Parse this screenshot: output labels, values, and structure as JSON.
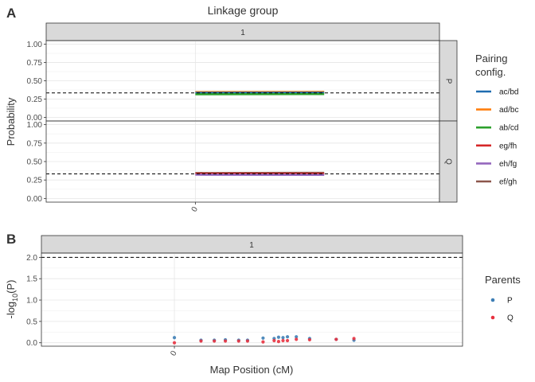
{
  "chart_data": [
    {
      "type": "line",
      "panel_letter": "A",
      "title": "Linkage group",
      "facet_column": "1",
      "ylabel": "Probability",
      "xticks": [
        {
          "value": 0,
          "label": "0"
        }
      ],
      "xlim": [
        -2.2,
        3.6
      ],
      "ylim": [
        -0.05,
        1.05
      ],
      "yticks": [
        0.0,
        0.25,
        0.5,
        0.75,
        1.0
      ],
      "ytick_labels": [
        "0.00",
        "0.25",
        "0.50",
        "0.75",
        "1.00"
      ],
      "reference_line_y": 0.3333,
      "legend_title": "Pairing config.",
      "legend_lines": [
        "Pairing",
        "config."
      ],
      "legend_position": "right",
      "series": [
        {
          "name": "ac/bd",
          "color": "#1f6cb0"
        },
        {
          "name": "ad/bc",
          "color": "#ff7f0e"
        },
        {
          "name": "ab/cd",
          "color": "#2ca02c"
        },
        {
          "name": "eg/fh",
          "color": "#d62728"
        },
        {
          "name": "eh/fg",
          "color": "#9467bd"
        },
        {
          "name": "ef/gh",
          "color": "#8c564b"
        }
      ],
      "facets": [
        {
          "label": "P",
          "lines": [
            {
              "series": "ad/bc",
              "x": [
                0.0,
                1.9
              ],
              "y": [
                0.345,
                0.348
              ]
            },
            {
              "series": "ac/bd",
              "x": [
                0.0,
                1.9
              ],
              "y": [
                0.335,
                0.336
              ]
            },
            {
              "series": "ab/cd",
              "x": [
                0.0,
                1.9
              ],
              "y": [
                0.315,
                0.318
              ]
            }
          ]
        },
        {
          "label": "Q",
          "lines": [
            {
              "series": "ef/gh",
              "x": [
                0.0,
                1.9
              ],
              "y": [
                0.345,
                0.347
              ]
            },
            {
              "series": "eg/fh",
              "x": [
                0.0,
                1.9
              ],
              "y": [
                0.333,
                0.334
              ]
            },
            {
              "series": "eh/fg",
              "x": [
                0.0,
                1.9
              ],
              "y": [
                0.322,
                0.32
              ]
            }
          ]
        }
      ]
    },
    {
      "type": "scatter",
      "panel_letter": "B",
      "facet_column": "1",
      "xlabel": "Map Position (cM)",
      "ylabel_prefix": "-log",
      "ylabel_sub": "10",
      "ylabel_suffix": "(P)",
      "xticks": [
        {
          "value": 0,
          "label": "0"
        }
      ],
      "xlim": [
        -0.6,
        1.3
      ],
      "ylim": [
        -0.08,
        2.1
      ],
      "yticks": [
        0.0,
        0.5,
        1.0,
        1.5,
        2.0
      ],
      "ytick_labels": [
        "0.0",
        "0.5",
        "1.0",
        "1.5",
        "2.0"
      ],
      "reference_line_y": 2.0,
      "legend_title": "Parents",
      "legend_position": "right",
      "series": [
        {
          "name": "P",
          "color": "#3d7eb5",
          "points": [
            [
              0.0,
              0.12
            ],
            [
              0.12,
              0.06
            ],
            [
              0.18,
              0.06
            ],
            [
              0.23,
              0.07
            ],
            [
              0.29,
              0.06
            ],
            [
              0.33,
              0.06
            ],
            [
              0.4,
              0.11
            ],
            [
              0.45,
              0.1
            ],
            [
              0.47,
              0.13
            ],
            [
              0.49,
              0.12
            ],
            [
              0.51,
              0.14
            ],
            [
              0.55,
              0.14
            ],
            [
              0.61,
              0.1
            ],
            [
              0.73,
              0.08
            ],
            [
              0.81,
              0.06
            ]
          ]
        },
        {
          "name": "Q",
          "color": "#e8313f",
          "points": [
            [
              0.0,
              0.0
            ],
            [
              0.12,
              0.04
            ],
            [
              0.18,
              0.04
            ],
            [
              0.23,
              0.04
            ],
            [
              0.29,
              0.04
            ],
            [
              0.33,
              0.04
            ],
            [
              0.4,
              0.02
            ],
            [
              0.45,
              0.05
            ],
            [
              0.47,
              0.03
            ],
            [
              0.49,
              0.05
            ],
            [
              0.51,
              0.05
            ],
            [
              0.55,
              0.08
            ],
            [
              0.61,
              0.07
            ],
            [
              0.73,
              0.08
            ],
            [
              0.81,
              0.1
            ]
          ]
        }
      ]
    }
  ]
}
